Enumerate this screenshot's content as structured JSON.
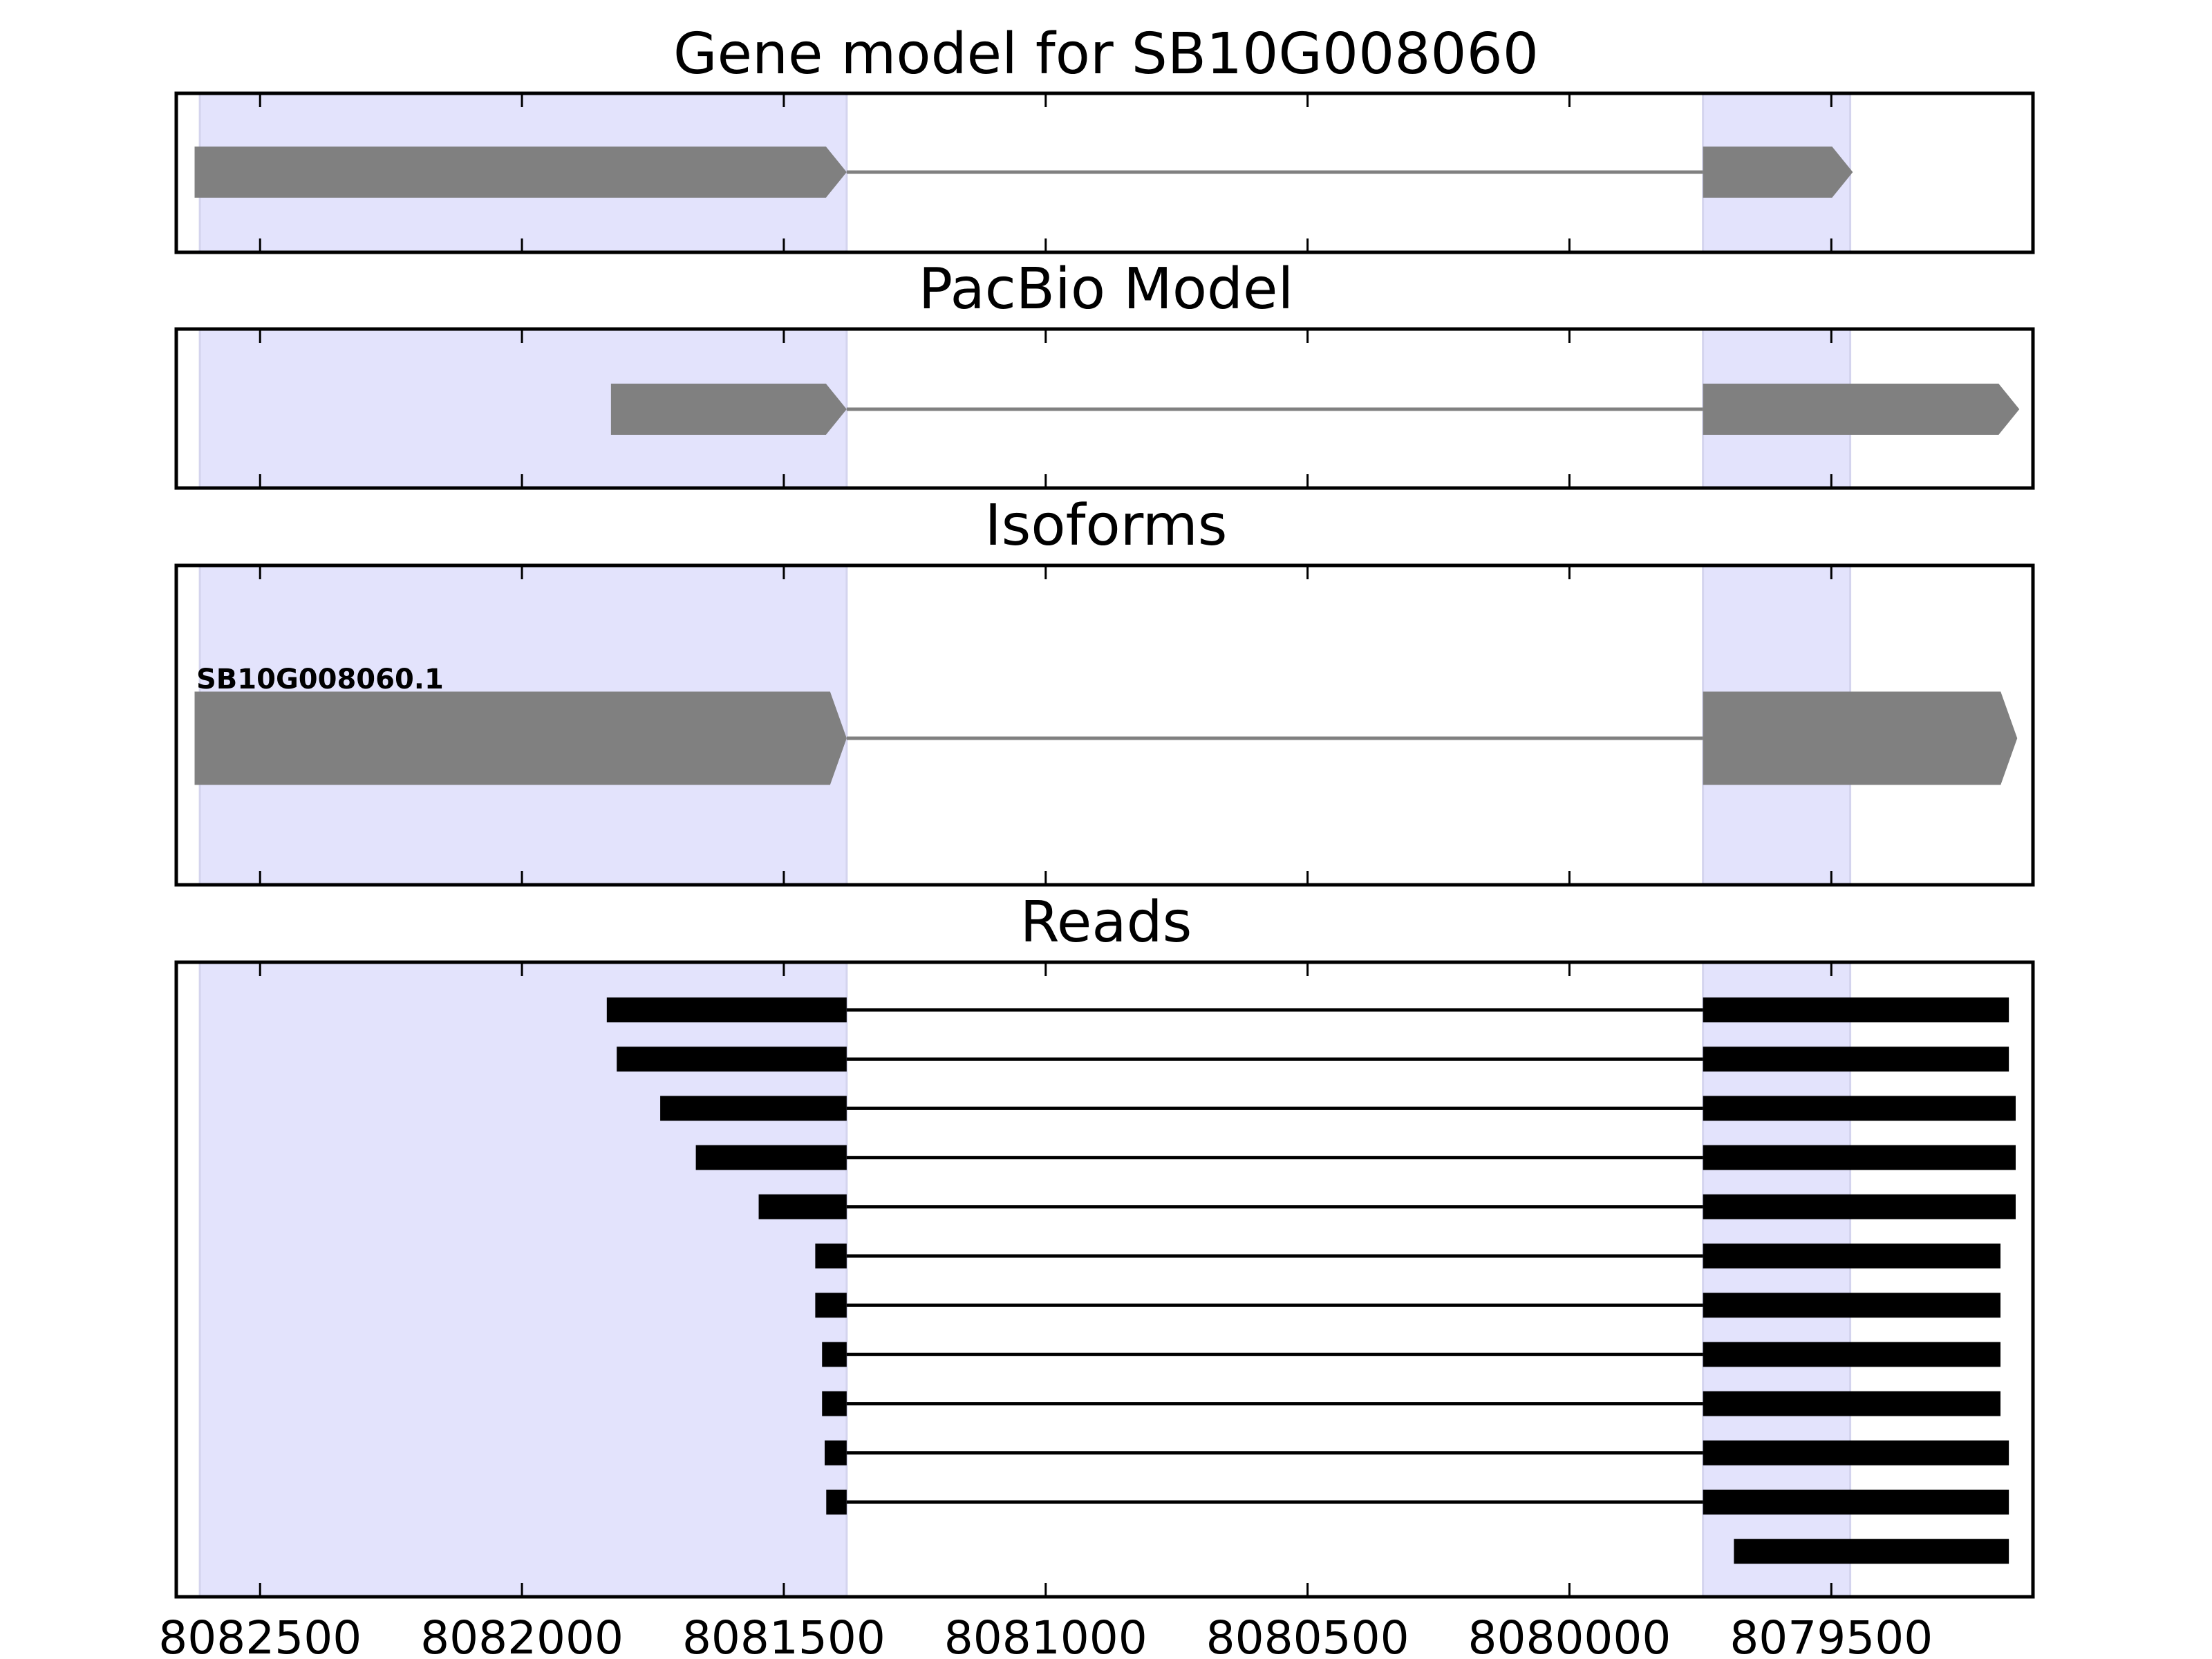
{
  "chart_data": {
    "type": "gene-track",
    "xlim": [
      8082660,
      8079115
    ],
    "xticks": [
      8082500,
      8082000,
      8081500,
      8081000,
      8080500,
      8080000,
      8079500
    ],
    "xtick_labels": [
      "8082500",
      "8082000",
      "8081500",
      "8081000",
      "8080500",
      "8080000",
      "8079500"
    ],
    "highlight_regions": [
      [
        8082615,
        8081380
      ],
      [
        8079745,
        8079464
      ]
    ],
    "colors": {
      "highlight": "#e3e3fc",
      "model": "#808080",
      "reads": "#000000"
    },
    "panels": [
      {
        "title": "Gene model for SB10G008060",
        "kind": "model",
        "exons": [
          [
            8082625,
            8081380
          ],
          [
            8079745,
            8079459
          ]
        ]
      },
      {
        "title": "PacBio Model",
        "kind": "model",
        "exons": [
          [
            8081830,
            8081380
          ],
          [
            8079745,
            8079141
          ]
        ]
      },
      {
        "title": "Isoforms",
        "kind": "isoform",
        "label": "SB10G008060.1",
        "exons": [
          [
            8082625,
            8081380
          ],
          [
            8079745,
            8079145
          ]
        ]
      },
      {
        "title": "Reads",
        "kind": "reads",
        "reads": [
          [
            [
              8081838,
              8081380
            ],
            [
              8079745,
              8079161
            ]
          ],
          [
            [
              8081819,
              8081380
            ],
            [
              8079745,
              8079161
            ]
          ],
          [
            [
              8081736,
              8081380
            ],
            [
              8079745,
              8079148
            ]
          ],
          [
            [
              8081668,
              8081380
            ],
            [
              8079745,
              8079148
            ]
          ],
          [
            [
              8081548,
              8081380
            ],
            [
              8079745,
              8079148
            ]
          ],
          [
            [
              8081440,
              8081380
            ],
            [
              8079745,
              8079177
            ]
          ],
          [
            [
              8081440,
              8081380
            ],
            [
              8079745,
              8079177
            ]
          ],
          [
            [
              8081427,
              8081380
            ],
            [
              8079745,
              8079177
            ]
          ],
          [
            [
              8081427,
              8081380
            ],
            [
              8079745,
              8079177
            ]
          ],
          [
            [
              8081422,
              8081380
            ],
            [
              8079745,
              8079161
            ]
          ],
          [
            [
              8081419,
              8081380
            ],
            [
              8079745,
              8079161
            ]
          ],
          [
            [
              8079686,
              8079161
            ]
          ]
        ]
      }
    ]
  }
}
